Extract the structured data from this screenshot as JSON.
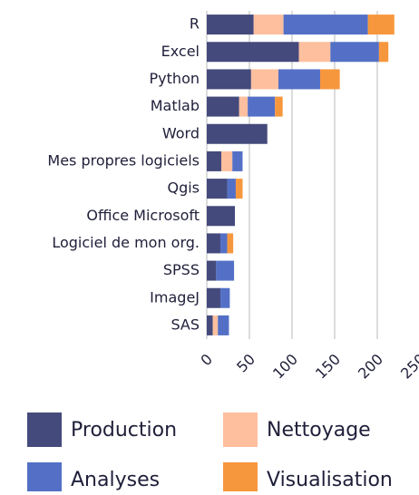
{
  "chart_data": {
    "type": "bar",
    "orientation": "horizontal",
    "stacked": true,
    "categories": [
      "R",
      "Excel",
      "Python",
      "Matlab",
      "Word",
      "Mes propres logiciels",
      "Qgis",
      "Office Microsoft",
      "Logiciel de mon org.",
      "SPSS",
      "ImageJ",
      "SAS"
    ],
    "series": [
      {
        "name": "Production",
        "color": "#454a7c",
        "values": [
          55,
          108,
          52,
          38,
          71,
          17,
          24,
          33,
          16,
          11,
          16,
          7
        ]
      },
      {
        "name": "Nettoyage",
        "color": "#fdbf9e",
        "values": [
          35,
          37,
          32,
          10,
          0,
          13,
          0,
          0,
          0,
          0,
          0,
          6
        ]
      },
      {
        "name": "Analyses",
        "color": "#5470c6",
        "values": [
          99,
          57,
          49,
          32,
          0,
          12,
          10,
          0,
          8,
          21,
          11,
          13
        ]
      },
      {
        "name": "Visualisation",
        "color": "#f7973d",
        "values": [
          31,
          11,
          23,
          9,
          0,
          0,
          8,
          0,
          7,
          0,
          0,
          0
        ]
      }
    ],
    "xlim": [
      0,
      250
    ],
    "xticks": [
      0,
      50,
      100,
      150,
      200,
      250
    ],
    "grid": true
  }
}
